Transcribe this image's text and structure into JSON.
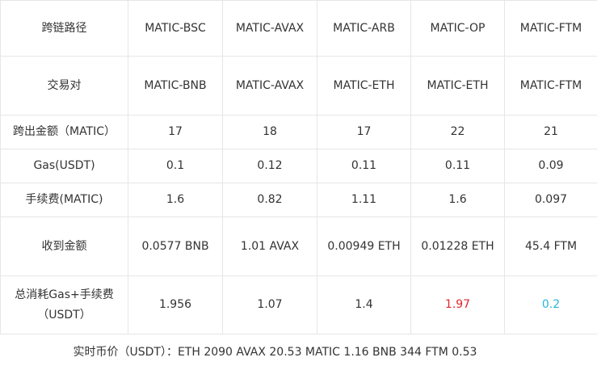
{
  "colors": {
    "highlight_red": "#e0282c",
    "highlight_cyan": "#2bb5d6"
  },
  "table": {
    "rows": [
      {
        "label": "跨链路径",
        "cells": [
          "MATIC-BSC",
          "MATIC-AVAX",
          "MATIC-ARB",
          "MATIC-OP",
          "MATIC-FTM"
        ]
      },
      {
        "label": "交易对",
        "cells": [
          "MATIC-BNB",
          "MATIC-AVAX",
          "MATIC-ETH",
          "MATIC-ETH",
          "MATIC-FTM"
        ]
      },
      {
        "label": "跨出金额（MATIC）",
        "cells": [
          "17",
          "18",
          "17",
          "22",
          "21"
        ]
      },
      {
        "label": "Gas(USDT)",
        "cells": [
          "0.1",
          "0.12",
          "0.11",
          "0.11",
          "0.09"
        ]
      },
      {
        "label": "手续费(MATIC)",
        "cells": [
          "1.6",
          "0.82",
          "1.11",
          "1.6",
          "0.097"
        ]
      },
      {
        "label": "收到金额",
        "cells": [
          "0.0577 BNB",
          "1.01 AVAX",
          "0.00949 ETH",
          "0.01228 ETH",
          "45.4 FTM"
        ]
      },
      {
        "label": "总消耗Gas+手续费（USDT）",
        "cells": [
          "1.956",
          "1.07",
          "1.4",
          "1.97",
          "0.2"
        ]
      }
    ],
    "footer": "实时币价（USDT）：ETH 2090 AVAX 20.53 MATIC 1.16 BNB 344 FTM 0.53"
  }
}
